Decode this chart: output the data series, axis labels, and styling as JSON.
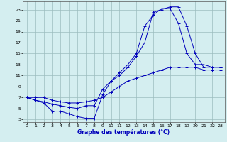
{
  "xlabel": "Graphe des températures (°C)",
  "bg_color": "#d4eef0",
  "grid_color": "#9bbcbe",
  "line_color": "#0000bb",
  "x_ticks": [
    0,
    1,
    2,
    3,
    4,
    5,
    6,
    7,
    8,
    9,
    10,
    11,
    12,
    13,
    14,
    15,
    16,
    17,
    18,
    19,
    20,
    21,
    22,
    23
  ],
  "y_ticks": [
    3,
    5,
    7,
    9,
    11,
    13,
    15,
    17,
    19,
    21,
    23
  ],
  "xlim": [
    -0.5,
    23.5
  ],
  "ylim": [
    2.5,
    24.5
  ],
  "curve1_x": [
    0,
    1,
    2,
    3,
    4,
    5,
    6,
    7,
    8,
    9,
    10,
    11,
    12,
    13,
    14,
    15,
    16,
    17,
    18,
    19,
    20,
    21,
    22,
    23
  ],
  "curve1_y": [
    7.0,
    6.5,
    6.0,
    4.5,
    4.5,
    4.0,
    3.5,
    3.2,
    3.2,
    7.5,
    10.0,
    11.5,
    13.0,
    15.0,
    20.0,
    22.0,
    23.2,
    23.2,
    20.5,
    15.0,
    13.0,
    13.0,
    12.5,
    12.5
  ],
  "curve2_x": [
    0,
    1,
    2,
    3,
    4,
    5,
    6,
    7,
    8,
    9,
    10,
    11,
    12,
    13,
    14,
    15,
    16,
    17,
    18,
    19,
    20,
    21,
    22,
    23
  ],
  "curve2_y": [
    7.0,
    6.5,
    6.2,
    5.8,
    5.5,
    5.2,
    5.0,
    5.5,
    5.5,
    8.5,
    10.0,
    11.0,
    12.5,
    14.5,
    17.0,
    22.5,
    23.0,
    23.5,
    23.5,
    20.0,
    15.0,
    12.5,
    12.5,
    12.5
  ],
  "curve3_x": [
    0,
    1,
    2,
    3,
    4,
    5,
    6,
    7,
    8,
    9,
    10,
    11,
    12,
    13,
    14,
    15,
    16,
    17,
    18,
    19,
    20,
    21,
    22,
    23
  ],
  "curve3_y": [
    7.0,
    7.0,
    7.0,
    6.5,
    6.2,
    6.0,
    6.0,
    6.2,
    6.5,
    7.0,
    8.0,
    9.0,
    10.0,
    10.5,
    11.0,
    11.5,
    12.0,
    12.5,
    12.5,
    12.5,
    12.5,
    12.0,
    12.0,
    12.0
  ]
}
